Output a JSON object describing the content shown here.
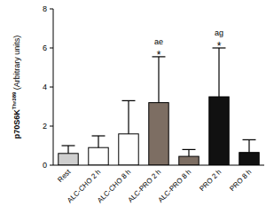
{
  "chart_data": {
    "type": "bar",
    "y_label": {
      "text": "p70S6K",
      "superscript": "Thr389",
      "suffix": " (Arbitrary units)"
    },
    "categories": [
      "Rest",
      "ALC-CHO 2 h",
      "ALC-CHO 8 h",
      "ALC-PRO 2 h",
      "ALC-PRO 8 h",
      "PRO 2 h",
      "PRO 8 h"
    ],
    "values": [
      0.6,
      0.9,
      1.6,
      3.2,
      0.45,
      3.5,
      0.65
    ],
    "errors": [
      0.4,
      0.6,
      1.7,
      2.35,
      0.35,
      2.5,
      0.65
    ],
    "colors": [
      "#cfcfcf",
      "#ffffff",
      "#ffffff",
      "#7d6e63",
      "#7d6e63",
      "#111111",
      "#111111"
    ],
    "annotations": [
      {
        "category": "ALC-PRO 2 h",
        "text": "*"
      },
      {
        "category": "ALC-PRO 2 h",
        "text": "ae"
      },
      {
        "category": "PRO 2 h",
        "text": "*"
      },
      {
        "category": "PRO 2 h",
        "text": "ag"
      }
    ],
    "ylim": [
      0,
      8
    ],
    "yticks": [
      0,
      2,
      4,
      6,
      8
    ],
    "grid": false
  }
}
